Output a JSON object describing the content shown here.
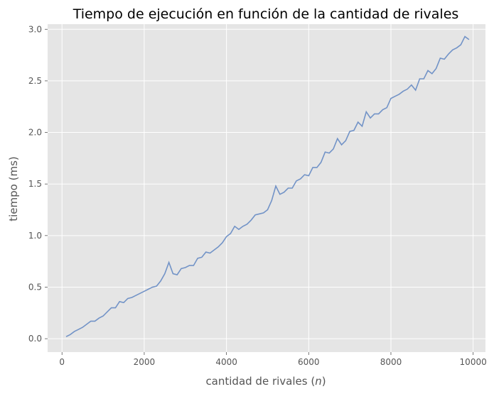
{
  "chart_data": {
    "type": "line",
    "title": "Tiempo de ejecución en función de la cantidad de rivales",
    "xlabel_prefix": "cantidad de rivales (",
    "xlabel_var": "n",
    "xlabel_suffix": ")",
    "ylabel": "tiempo (ms)",
    "xlim": [
      -350,
      10300
    ],
    "ylim": [
      -0.13,
      3.05
    ],
    "xticks": [
      0,
      2000,
      4000,
      6000,
      8000,
      10000
    ],
    "yticks": [
      0.0,
      0.5,
      1.0,
      1.5,
      2.0,
      2.5,
      3.0
    ],
    "xtick_labels": [
      "0",
      "2000",
      "4000",
      "6000",
      "8000",
      "10000"
    ],
    "ytick_labels": [
      "0.0",
      "0.5",
      "1.0",
      "1.5",
      "2.0",
      "2.5",
      "3.0"
    ],
    "grid": true,
    "colors": {
      "background": "#e5e5e5",
      "grid": "#ffffff",
      "line": "#7293c7"
    },
    "series": [
      {
        "x": [
          100,
          200,
          300,
          400,
          500,
          600,
          700,
          800,
          900,
          1000,
          1100,
          1200,
          1300,
          1400,
          1500,
          1600,
          1700,
          1800,
          1900,
          2000,
          2100,
          2200,
          2300,
          2400,
          2500,
          2600,
          2700,
          2800,
          2900,
          3000,
          3100,
          3200,
          3300,
          3400,
          3500,
          3600,
          3700,
          3800,
          3900,
          4000,
          4100,
          4200,
          4300,
          4400,
          4500,
          4600,
          4700,
          4800,
          4900,
          5000,
          5100,
          5200,
          5300,
          5400,
          5500,
          5600,
          5700,
          5800,
          5900,
          6000,
          6100,
          6200,
          6300,
          6400,
          6500,
          6600,
          6700,
          6800,
          6900,
          7000,
          7100,
          7200,
          7300,
          7400,
          7500,
          7600,
          7700,
          7800,
          7900,
          8000,
          8100,
          8200,
          8300,
          8400,
          8500,
          8600,
          8700,
          8800,
          8900,
          9000,
          9100,
          9200,
          9300,
          9400,
          9500,
          9600,
          9700,
          9800,
          9900
        ],
        "y": [
          0.02,
          0.04,
          0.07,
          0.09,
          0.11,
          0.14,
          0.17,
          0.17,
          0.2,
          0.22,
          0.26,
          0.3,
          0.3,
          0.36,
          0.35,
          0.39,
          0.4,
          0.42,
          0.44,
          0.46,
          0.48,
          0.5,
          0.51,
          0.56,
          0.63,
          0.74,
          0.63,
          0.62,
          0.68,
          0.69,
          0.71,
          0.71,
          0.78,
          0.79,
          0.84,
          0.83,
          0.86,
          0.89,
          0.93,
          0.99,
          1.02,
          1.09,
          1.06,
          1.09,
          1.11,
          1.15,
          1.2,
          1.21,
          1.22,
          1.25,
          1.34,
          1.48,
          1.4,
          1.42,
          1.46,
          1.46,
          1.53,
          1.55,
          1.59,
          1.58,
          1.66,
          1.66,
          1.71,
          1.81,
          1.8,
          1.84,
          1.94,
          1.88,
          1.92,
          2.01,
          2.02,
          2.1,
          2.06,
          2.2,
          2.14,
          2.18,
          2.18,
          2.22,
          2.24,
          2.33,
          2.35,
          2.37,
          2.4,
          2.42,
          2.46,
          2.41,
          2.52,
          2.52,
          2.6,
          2.57,
          2.62,
          2.72,
          2.71,
          2.76,
          2.8,
          2.82,
          2.85,
          2.93,
          2.9
        ]
      }
    ]
  }
}
